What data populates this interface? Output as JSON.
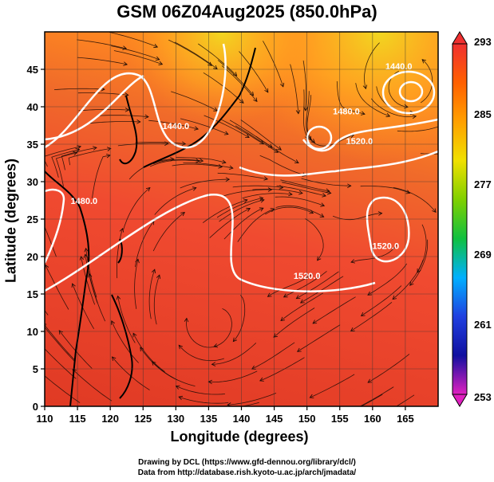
{
  "title": "GSM 06Z04Aug2025 (850.0hPa)",
  "xlabel": "Longitude (degrees)",
  "ylabel": "Latitude  (degrees)",
  "credits": [
    "Drawing by DCL (https://www.gfd-dennou.org/library/dcl/)",
    "Data from http://database.rish.kyoto-u.ac.jp/arch/jmadata/"
  ],
  "chart_data": {
    "type": "map",
    "xlim": [
      110,
      170
    ],
    "ylim": [
      0,
      50
    ],
    "x_ticks": [
      110,
      115,
      120,
      125,
      130,
      135,
      140,
      145,
      150,
      155,
      160,
      165
    ],
    "y_ticks": [
      0,
      5,
      10,
      15,
      20,
      25,
      30,
      35,
      40,
      45
    ],
    "grid": true,
    "colorbar": {
      "min": 253,
      "max": 293,
      "ticks": [
        253,
        261,
        269,
        277,
        285,
        293
      ],
      "colors": [
        "#e020c0",
        "#1010a0",
        "#2040e0",
        "#00b0ff",
        "#10c040",
        "#80d000",
        "#f0e000",
        "#ffa000",
        "#ff6000",
        "#f03030"
      ]
    },
    "contours": [
      {
        "label": "1440.0",
        "lon": 130,
        "lat": 37
      },
      {
        "label": "1480.0",
        "lon": 156,
        "lat": 39
      },
      {
        "label": "1440.0",
        "lon": 164,
        "lat": 45
      },
      {
        "label": "1520.0",
        "lon": 158,
        "lat": 35
      },
      {
        "label": "1520.0",
        "lon": 150,
        "lat": 17
      },
      {
        "label": "1520.0",
        "lon": 162,
        "lat": 21
      },
      {
        "label": "1480.0",
        "lon": 116,
        "lat": 27
      }
    ]
  }
}
